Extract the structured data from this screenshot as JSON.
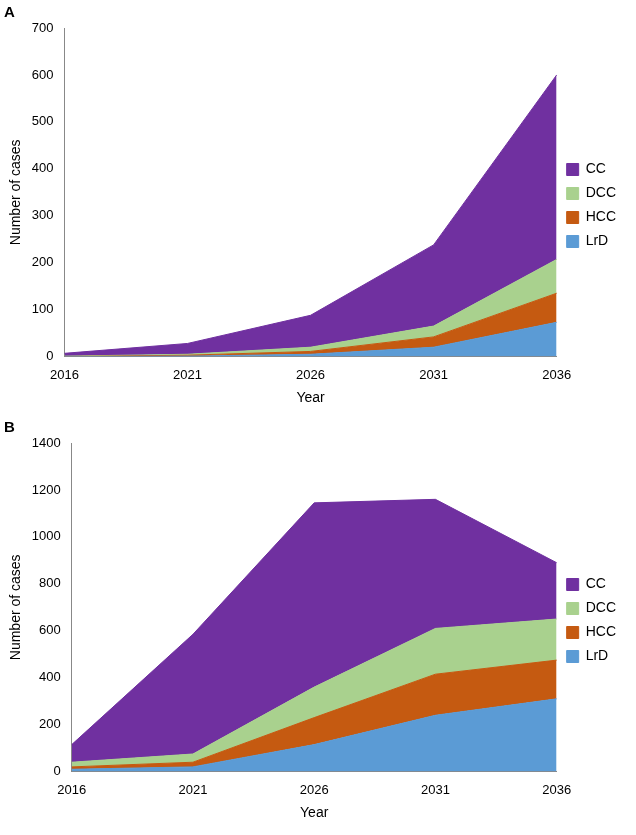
{
  "chart_data": [
    {
      "type": "area",
      "title": "A",
      "stacked": true,
      "legend": "right",
      "grid": false,
      "x_label": "Year",
      "y_label": "Number of cases",
      "categories": [
        "2016",
        "2021",
        "2026",
        "2031",
        "2036"
      ],
      "ylim": [
        0,
        700
      ],
      "yticks": [
        0,
        100,
        200,
        300,
        400,
        500,
        600,
        700
      ],
      "series": [
        {
          "name": "LrD",
          "color": "#5b9bd5",
          "values": [
            0,
            1,
            5,
            20,
            73
          ]
        },
        {
          "name": "HCC",
          "color": "#c55a11",
          "values": [
            0,
            2,
            6,
            22,
            62
          ]
        },
        {
          "name": "DCC",
          "color": "#a9d18e",
          "values": [
            1,
            2,
            9,
            23,
            72
          ]
        },
        {
          "name": "CC",
          "color": "#7030a0",
          "values": [
            6,
            23,
            68,
            173,
            393
          ]
        }
      ]
    },
    {
      "type": "area",
      "title": "B",
      "stacked": true,
      "legend": "right",
      "grid": false,
      "x_label": "Year",
      "y_label": "Number of cases",
      "categories": [
        "2016",
        "2021",
        "2026",
        "2031",
        "2036"
      ],
      "ylim": [
        0,
        1400
      ],
      "yticks": [
        0,
        200,
        400,
        600,
        800,
        1000,
        1200,
        1400
      ],
      "series": [
        {
          "name": "LrD",
          "color": "#5b9bd5",
          "values": [
            10,
            20,
            115,
            240,
            310
          ]
        },
        {
          "name": "HCC",
          "color": "#c55a11",
          "values": [
            10,
            20,
            115,
            175,
            165
          ]
        },
        {
          "name": "DCC",
          "color": "#a9d18e",
          "values": [
            20,
            35,
            130,
            195,
            175
          ]
        },
        {
          "name": "CC",
          "color": "#7030a0",
          "values": [
            75,
            510,
            785,
            550,
            240
          ]
        }
      ]
    }
  ]
}
